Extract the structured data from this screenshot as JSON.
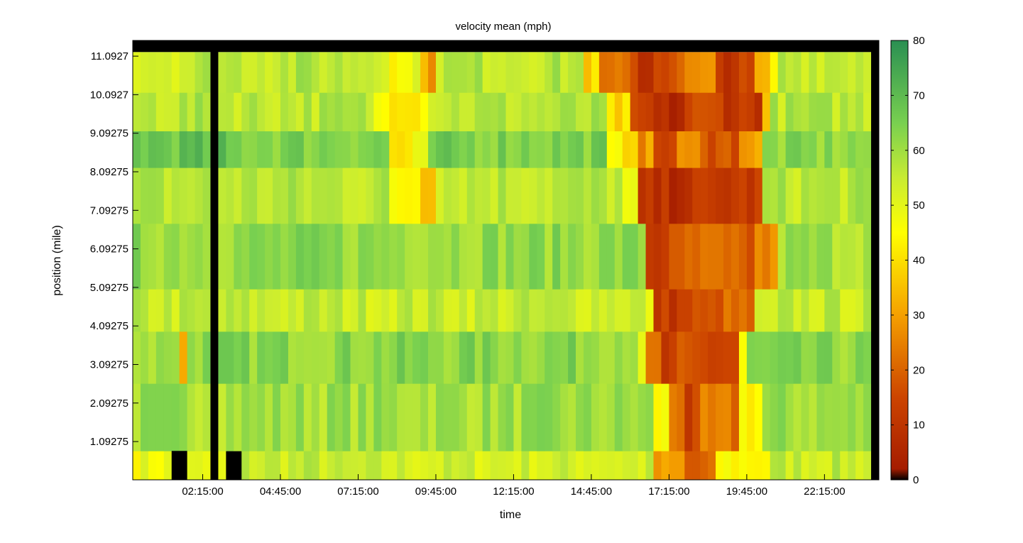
{
  "chart_data": {
    "type": "heatmap",
    "title": "velocity mean (mph)",
    "xlabel": "time",
    "ylabel": "position (mile)",
    "x_tick_labels": [
      "02:15:00",
      "04:45:00",
      "07:15:00",
      "09:45:00",
      "12:15:00",
      "14:45:00",
      "17:15:00",
      "19:45:00",
      "22:15:00"
    ],
    "x_tick_minutes": [
      135,
      285,
      435,
      585,
      735,
      885,
      1035,
      1185,
      1335
    ],
    "x_range_minutes": [
      0,
      1440
    ],
    "time_bin_minutes": 15,
    "y_tick_labels": [
      "1.09275",
      "2.09275",
      "3.09275",
      "4.09275",
      "5.09275",
      "6.09275",
      "7.09275",
      "8.09275",
      "9.09275",
      "10.0927",
      "11.0927"
    ],
    "y_ticks": [
      1.09275,
      2.09275,
      3.09275,
      4.09275,
      5.09275,
      6.09275,
      7.09275,
      8.09275,
      9.09275,
      10.0927,
      11.0927
    ],
    "y_range": [
      0.1,
      11.5
    ],
    "position_bands": [
      {
        "from": 0.1,
        "to": 0.85
      },
      {
        "from": 0.85,
        "to": 2.6
      },
      {
        "from": 2.6,
        "to": 3.95
      },
      {
        "from": 3.95,
        "to": 5.05
      },
      {
        "from": 5.05,
        "to": 6.75
      },
      {
        "from": 6.75,
        "to": 8.2
      },
      {
        "from": 8.2,
        "to": 9.15
      },
      {
        "from": 9.15,
        "to": 10.15
      },
      {
        "from": 10.15,
        "to": 11.2
      }
    ],
    "band_profiles": [
      {
        "base": 55,
        "segments": [
          [
            0,
            180,
            48
          ],
          [
            180,
            210,
            0
          ],
          [
            390,
            1005,
            53
          ],
          [
            1005,
            1065,
            28
          ],
          [
            1065,
            1125,
            18
          ],
          [
            1125,
            1230,
            45
          ],
          [
            1230,
            1380,
            55
          ]
        ]
      },
      {
        "base": 60,
        "segments": [
          [
            1005,
            1035,
            45
          ],
          [
            1035,
            1065,
            25
          ],
          [
            1065,
            1095,
            12
          ],
          [
            1095,
            1170,
            22
          ],
          [
            1170,
            1215,
            45
          ],
          [
            1215,
            1440,
            60
          ]
        ]
      },
      {
        "base": 63,
        "segments": [
          [
            0,
            60,
            60
          ],
          [
            90,
            105,
            30
          ],
          [
            975,
            990,
            45
          ],
          [
            990,
            1020,
            20
          ],
          [
            1020,
            1050,
            10
          ],
          [
            1050,
            1170,
            15
          ],
          [
            1170,
            1185,
            45
          ],
          [
            1185,
            1440,
            62
          ]
        ]
      },
      {
        "base": 55,
        "segments": [
          [
            990,
            1005,
            45
          ],
          [
            1005,
            1065,
            12
          ],
          [
            1065,
            1125,
            15
          ],
          [
            1125,
            1200,
            20
          ],
          [
            1200,
            1245,
            50
          ],
          [
            1245,
            1440,
            55
          ]
        ]
      },
      {
        "base": 62,
        "segments": [
          [
            990,
            1020,
            12
          ],
          [
            1020,
            1065,
            15
          ],
          [
            1065,
            1140,
            20
          ],
          [
            1140,
            1200,
            18
          ],
          [
            1200,
            1245,
            25
          ],
          [
            1245,
            1440,
            60
          ]
        ]
      },
      {
        "base": 57,
        "segments": [
          [
            495,
            555,
            45
          ],
          [
            555,
            585,
            38
          ],
          [
            945,
            975,
            45
          ],
          [
            975,
            1050,
            8
          ],
          [
            1050,
            1140,
            10
          ],
          [
            1140,
            1215,
            12
          ],
          [
            1215,
            1440,
            57
          ]
        ]
      },
      {
        "base": 65,
        "segments": [
          [
            0,
            180,
            68
          ],
          [
            495,
            540,
            40
          ],
          [
            540,
            570,
            45
          ],
          [
            915,
            975,
            42
          ],
          [
            975,
            1005,
            28
          ],
          [
            1005,
            1050,
            15
          ],
          [
            1050,
            1110,
            25
          ],
          [
            1110,
            1170,
            18
          ],
          [
            1170,
            1215,
            30
          ],
          [
            1215,
            1440,
            62
          ]
        ]
      },
      {
        "base": 57,
        "segments": [
          [
            465,
            570,
            45
          ],
          [
            915,
            960,
            38
          ],
          [
            960,
            1005,
            12
          ],
          [
            1005,
            1065,
            6
          ],
          [
            1065,
            1140,
            15
          ],
          [
            1140,
            1215,
            12
          ],
          [
            1215,
            1230,
            35
          ],
          [
            1230,
            1440,
            57
          ]
        ]
      },
      {
        "base": 57,
        "segments": [
          [
            0,
            135,
            55
          ],
          [
            495,
            540,
            45
          ],
          [
            555,
            585,
            30
          ],
          [
            870,
            900,
            38
          ],
          [
            900,
            975,
            20
          ],
          [
            975,
            1005,
            8
          ],
          [
            1005,
            1065,
            18
          ],
          [
            1065,
            1125,
            25
          ],
          [
            1125,
            1200,
            12
          ],
          [
            1200,
            1230,
            30
          ],
          [
            1230,
            1245,
            45
          ],
          [
            1245,
            1440,
            57
          ]
        ]
      }
    ],
    "missing_data": [
      {
        "from_minutes": 150,
        "to_minutes": 165,
        "rows": "all"
      },
      {
        "from_minutes": 1425,
        "to_minutes": 1440,
        "rows": "all"
      },
      {
        "from_minutes": 0,
        "to_minutes": 1440,
        "position_from": 11.2,
        "position_to": 11.5
      },
      {
        "from_minutes": 75,
        "to_minutes": 105,
        "position_from": 0.1,
        "position_to": 0.85
      }
    ],
    "colorbar": {
      "min": 0,
      "max": 80,
      "tick_labels": [
        "0",
        "10",
        "20",
        "30",
        "40",
        "50",
        "60",
        "70",
        "80"
      ],
      "tick_values": [
        0,
        10,
        20,
        30,
        40,
        50,
        60,
        70,
        80
      ],
      "stops": [
        {
          "value": 0,
          "color": "#000000"
        },
        {
          "value": 2,
          "color": "#a51c00"
        },
        {
          "value": 15,
          "color": "#cc4400"
        },
        {
          "value": 30,
          "color": "#f5a000"
        },
        {
          "value": 45,
          "color": "#ffff00"
        },
        {
          "value": 55,
          "color": "#c8ec32"
        },
        {
          "value": 65,
          "color": "#78d050"
        },
        {
          "value": 80,
          "color": "#2a8f52"
        }
      ]
    },
    "grid": false,
    "legend": "colorbar-right"
  }
}
